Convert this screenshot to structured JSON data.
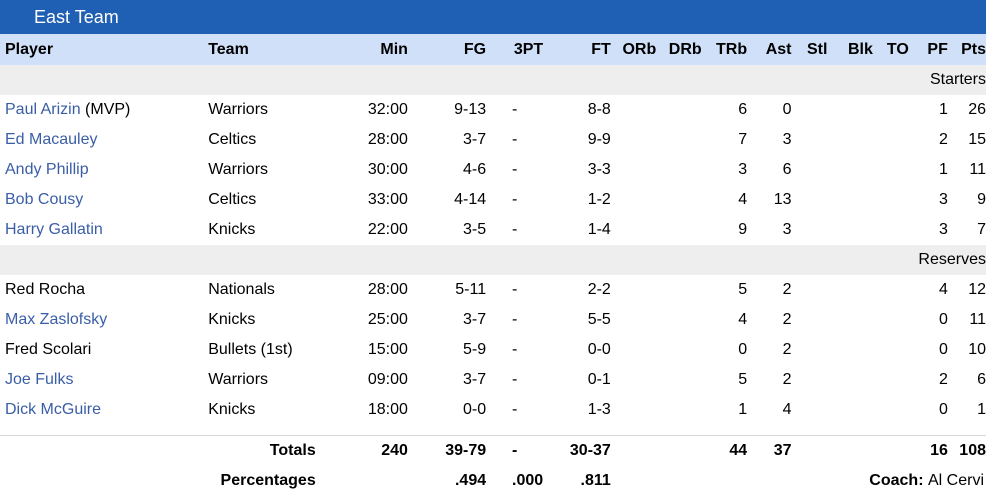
{
  "header": {
    "title": "East Team"
  },
  "columns": [
    "Player",
    "Team",
    "Min",
    "FG",
    "3PT",
    "FT",
    "ORb",
    "DRb",
    "TRb",
    "Ast",
    "Stl",
    "Blk",
    "TO",
    "PF",
    "Pts"
  ],
  "sections": {
    "starters": "Starters",
    "reserves": "Reserves"
  },
  "starters": [
    {
      "player": "Paul Arizin",
      "suffix": " (MVP)",
      "team": "Warriors",
      "min": "32:00",
      "fg": "9-13",
      "tpt": "-",
      "ft": "8-8",
      "orb": "",
      "drb": "",
      "trb": "6",
      "ast": "0",
      "stl": "",
      "blk": "",
      "to": "",
      "pf": "1",
      "pts": "26"
    },
    {
      "player": "Ed Macauley",
      "suffix": "",
      "team": "Celtics",
      "min": "28:00",
      "fg": "3-7",
      "tpt": "-",
      "ft": "9-9",
      "orb": "",
      "drb": "",
      "trb": "7",
      "ast": "3",
      "stl": "",
      "blk": "",
      "to": "",
      "pf": "2",
      "pts": "15"
    },
    {
      "player": "Andy Phillip",
      "suffix": "",
      "team": "Warriors",
      "min": "30:00",
      "fg": "4-6",
      "tpt": "-",
      "ft": "3-3",
      "orb": "",
      "drb": "",
      "trb": "3",
      "ast": "6",
      "stl": "",
      "blk": "",
      "to": "",
      "pf": "1",
      "pts": "11"
    },
    {
      "player": "Bob Cousy",
      "suffix": "",
      "team": "Celtics",
      "min": "33:00",
      "fg": "4-14",
      "tpt": "-",
      "ft": "1-2",
      "orb": "",
      "drb": "",
      "trb": "4",
      "ast": "13",
      "stl": "",
      "blk": "",
      "to": "",
      "pf": "3",
      "pts": "9"
    },
    {
      "player": "Harry Gallatin",
      "suffix": "",
      "team": "Knicks",
      "min": "22:00",
      "fg": "3-5",
      "tpt": "-",
      "ft": "1-4",
      "orb": "",
      "drb": "",
      "trb": "9",
      "ast": "3",
      "stl": "",
      "blk": "",
      "to": "",
      "pf": "3",
      "pts": "7"
    }
  ],
  "reserves": [
    {
      "player": "Red Rocha",
      "team": "Nationals",
      "min": "28:00",
      "fg": "5-11",
      "tpt": "-",
      "ft": "2-2",
      "orb": "",
      "drb": "",
      "trb": "5",
      "ast": "2",
      "stl": "",
      "blk": "",
      "to": "",
      "pf": "4",
      "pts": "12"
    },
    {
      "player": "Max Zaslofsky",
      "team": "Knicks",
      "min": "25:00",
      "fg": "3-7",
      "tpt": "-",
      "ft": "5-5",
      "orb": "",
      "drb": "",
      "trb": "4",
      "ast": "2",
      "stl": "",
      "blk": "",
      "to": "",
      "pf": "0",
      "pts": "11"
    },
    {
      "player": "Fred Scolari",
      "team": "Bullets (1st)",
      "min": "15:00",
      "fg": "5-9",
      "tpt": "-",
      "ft": "0-0",
      "orb": "",
      "drb": "",
      "trb": "0",
      "ast": "2",
      "stl": "",
      "blk": "",
      "to": "",
      "pf": "0",
      "pts": "10"
    },
    {
      "player": "Joe Fulks",
      "team": "Warriors",
      "min": "09:00",
      "fg": "3-7",
      "tpt": "-",
      "ft": "0-1",
      "orb": "",
      "drb": "",
      "trb": "5",
      "ast": "2",
      "stl": "",
      "blk": "",
      "to": "",
      "pf": "2",
      "pts": "6"
    },
    {
      "player": "Dick McGuire",
      "team": "Knicks",
      "min": "18:00",
      "fg": "0-0",
      "tpt": "-",
      "ft": "1-3",
      "orb": "",
      "drb": "",
      "trb": "1",
      "ast": "4",
      "stl": "",
      "blk": "",
      "to": "",
      "pf": "0",
      "pts": "1"
    }
  ],
  "totals": {
    "label": "Totals",
    "min": "240",
    "fg": "39-79",
    "tpt": "-",
    "ft": "30-37",
    "trb": "44",
    "ast": "37",
    "pf": "16",
    "pts": "108"
  },
  "percentages": {
    "label": "Percentages",
    "fg": ".494",
    "tpt": ".000",
    "ft": ".811",
    "coach_label": "Coach:",
    "coach_name": "Al Cervi"
  },
  "colors": {
    "title_bar": "#1f5fb4",
    "header_row": "#cfe0f8",
    "section_row": "#eeeeee",
    "link": "#3a5ea6"
  }
}
